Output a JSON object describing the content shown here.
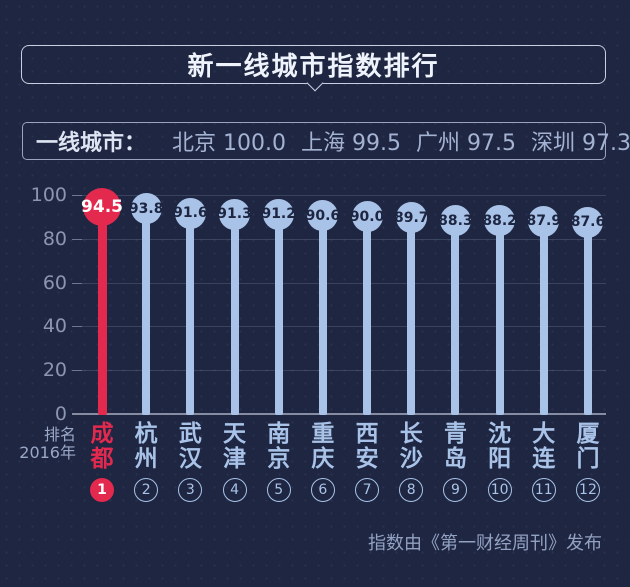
{
  "title": "新一线城市指数排行",
  "tier1": {
    "label": "一线城市：",
    "pairs": [
      {
        "name": "北京",
        "value": "100.0"
      },
      {
        "name": "上海",
        "value": "99.5"
      },
      {
        "name": "广州",
        "value": "97.5"
      },
      {
        "name": "深圳",
        "value": "97.3"
      }
    ]
  },
  "axis": {
    "row_label_line1": "排名",
    "row_label_line2": "2016年"
  },
  "footer": "指数由《第一财经周刊》发布",
  "colors": {
    "background": "#1e2642",
    "highlight_red": "#e3294d",
    "pin_blue": "#a9c3e8",
    "pin_text_dark": "#1d2540",
    "light_text": "#a5b3d2"
  },
  "chart_data": {
    "type": "bar",
    "style": "lollipop",
    "title": "新一线城市指数排行",
    "categories": [
      "成都",
      "杭州",
      "武汉",
      "天津",
      "南京",
      "重庆",
      "西安",
      "长沙",
      "青岛",
      "沈阳",
      "大连",
      "厦门"
    ],
    "values": [
      94.5,
      93.8,
      91.6,
      91.3,
      91.2,
      90.6,
      90.0,
      89.7,
      88.3,
      88.2,
      87.9,
      87.6
    ],
    "value_labels": [
      "94.5",
      "93.8",
      "91.6",
      "91.3",
      "91.2",
      "90.6",
      "90.0",
      "89.7",
      "88.3",
      "88.2",
      "87.9",
      "87.6"
    ],
    "ranks": [
      "1",
      "2",
      "3",
      "4",
      "5",
      "6",
      "7",
      "8",
      "9",
      "10",
      "11",
      "12"
    ],
    "highlight_index": 0,
    "xlabel": "排名 2016年",
    "ylabel": "",
    "ylim": [
      0,
      100
    ],
    "yticks": [
      0,
      20,
      40,
      60,
      80,
      100
    ],
    "grid": true,
    "legend_position": "none",
    "annotation": "一线城市： 北京 100.0 上海 99.5 广州 97.5 深圳 97.3",
    "source_note": "指数由《第一财经周刊》发布"
  }
}
